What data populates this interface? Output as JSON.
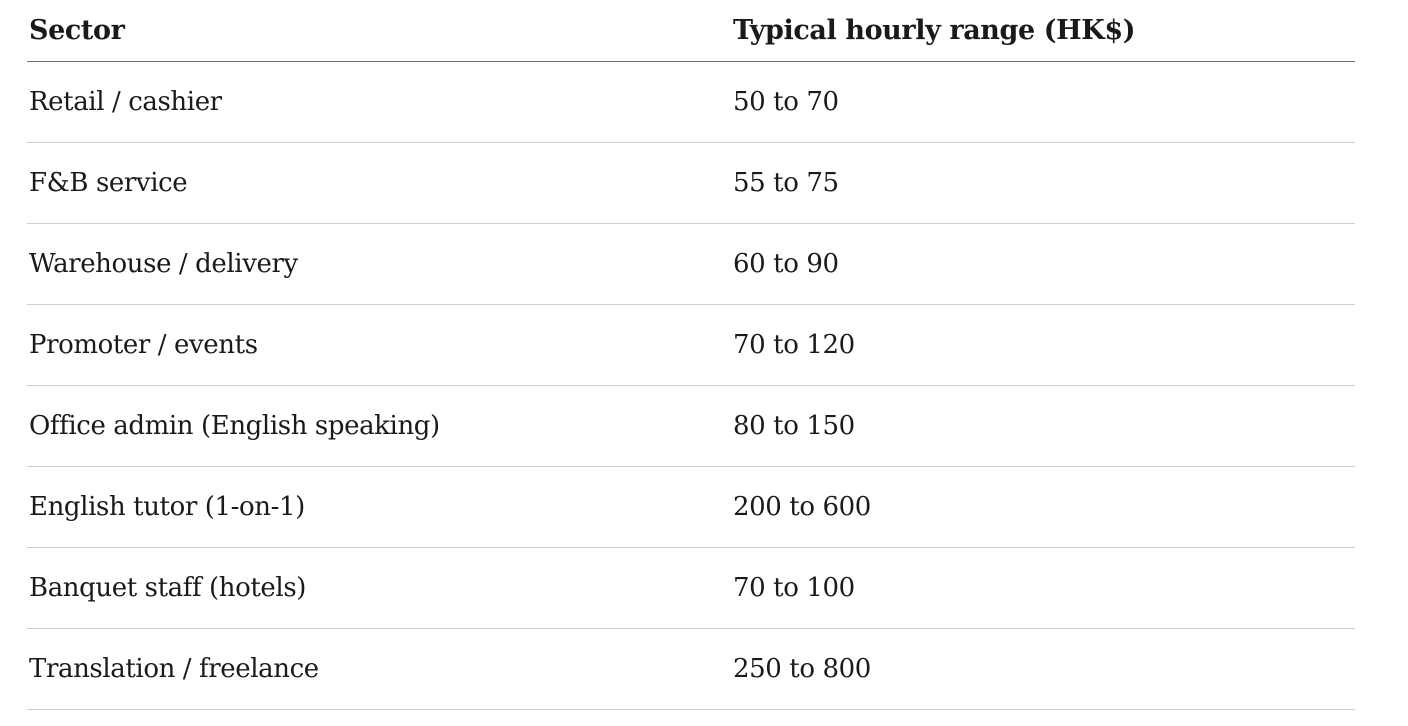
{
  "table": {
    "headers": [
      "Sector",
      "Typical hourly range (HK$)"
    ],
    "rows": [
      [
        "Retail / cashier",
        "50 to 70"
      ],
      [
        "F&B service",
        "55 to 75"
      ],
      [
        "Warehouse / delivery",
        "60 to 90"
      ],
      [
        "Promoter / events",
        "70 to 120"
      ],
      [
        "Office admin (English speaking)",
        "80 to 150"
      ],
      [
        "English tutor (1-on-1)",
        "200 to 600"
      ],
      [
        "Banquet staff (hotels)",
        "70 to 100"
      ],
      [
        "Translation / freelance",
        "250 to 800"
      ]
    ]
  }
}
